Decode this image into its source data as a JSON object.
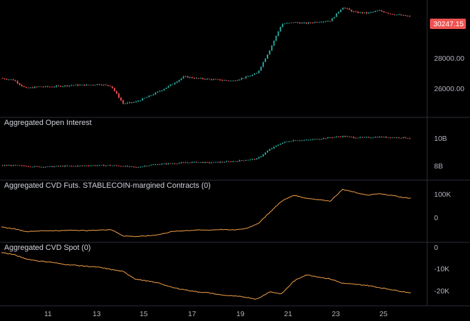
{
  "colors": {
    "background": "#000000",
    "separator": "#2a2e39",
    "axis_text": "#b2b5be",
    "up_candle": "#26a69a",
    "down_candle": "#ef5350",
    "cvd_line": "#f5a046",
    "price_tag": "#ef5350"
  },
  "price_pane": {
    "title": "",
    "last_price_label": "30247.15",
    "y_ticks": [
      "28000.00",
      "26000.00"
    ]
  },
  "oi_pane": {
    "title": "Aggregated Open Interest",
    "y_ticks": [
      "10B",
      "8B"
    ]
  },
  "cvd_futs_pane": {
    "title": "Aggregated CVD Futs. STABLECOIN-margined Contracts (0)",
    "y_ticks": [
      "100K",
      "0"
    ]
  },
  "cvd_spot_pane": {
    "title": "Aggregated CVD Spot (0)",
    "y_ticks": [
      "0",
      "-10K",
      "-20K"
    ]
  },
  "time_axis": {
    "labels": [
      "11",
      "13",
      "15",
      "17",
      "19",
      "21",
      "23",
      "25"
    ]
  },
  "chart_data": [
    {
      "type": "line",
      "title": "",
      "note_type": "candlestick",
      "x": [
        9.5,
        10.0,
        10.5,
        11.0,
        11.5,
        12.0,
        12.5,
        13.0,
        13.5,
        14.0,
        14.5,
        15.0,
        15.5,
        16.0,
        16.5,
        17.0,
        17.5,
        18.0,
        18.5,
        19.0,
        19.5,
        20.0,
        20.5,
        21.0,
        21.5,
        22.0,
        22.5,
        23.0,
        23.5,
        24.0,
        24.5,
        25.0,
        25.5,
        26.0,
        26.3
      ],
      "values": [
        26600,
        26500,
        26000,
        26100,
        26100,
        26150,
        26200,
        26200,
        26250,
        26150,
        25100,
        25200,
        25500,
        25850,
        26250,
        26700,
        26600,
        26550,
        26500,
        26450,
        26650,
        26900,
        28250,
        29800,
        29900,
        29850,
        29950,
        30000,
        30800,
        30500,
        30450,
        30600,
        30400,
        30300,
        30247
      ],
      "ylim": [
        24700,
        30900
      ],
      "y_ticks": [
        28000,
        26000
      ],
      "xlim": [
        9.5,
        26.8
      ]
    },
    {
      "type": "line",
      "title": "Aggregated Open Interest",
      "x": [
        9.5,
        10.0,
        10.5,
        11.0,
        11.5,
        12.0,
        12.5,
        13.0,
        13.5,
        14.0,
        14.5,
        15.0,
        15.5,
        16.0,
        16.5,
        17.0,
        17.5,
        18.0,
        18.5,
        19.0,
        19.5,
        20.0,
        20.5,
        21.0,
        21.5,
        22.0,
        22.5,
        23.0,
        23.5,
        24.0,
        24.5,
        25.0,
        25.5,
        26.0,
        26.3
      ],
      "values": [
        8.3,
        8.3,
        8.25,
        8.2,
        8.2,
        8.25,
        8.25,
        8.3,
        8.3,
        8.3,
        8.25,
        8.15,
        8.3,
        8.4,
        8.45,
        8.5,
        8.55,
        8.5,
        8.55,
        8.6,
        8.7,
        8.8,
        9.5,
        10.0,
        10.2,
        10.2,
        10.3,
        10.4,
        10.5,
        10.4,
        10.4,
        10.45,
        10.4,
        10.4,
        10.35
      ],
      "ylim": [
        7.5,
        11.3
      ],
      "y_ticks": [
        10,
        8
      ],
      "xlim": [
        9.5,
        26.8
      ]
    },
    {
      "type": "line",
      "title": "Aggregated CVD Futs. STABLECOIN-margined Contracts (0)",
      "x": [
        9.5,
        10.0,
        10.5,
        11.0,
        11.5,
        12.0,
        12.5,
        13.0,
        13.5,
        14.0,
        14.5,
        15.0,
        15.5,
        16.0,
        16.5,
        17.0,
        17.5,
        18.0,
        18.5,
        19.0,
        19.5,
        20.0,
        20.5,
        21.0,
        21.5,
        22.0,
        22.5,
        23.0,
        23.5,
        24.0,
        24.5,
        25.0,
        25.5,
        26.0,
        26.3
      ],
      "values": [
        0,
        -5000,
        -15000,
        -13000,
        -12000,
        -12000,
        -10000,
        -12000,
        -10000,
        -8000,
        -30000,
        -32000,
        -30000,
        -25000,
        -15000,
        -12000,
        -10000,
        -10000,
        -8000,
        -10000,
        -5000,
        10000,
        50000,
        90000,
        110000,
        100000,
        95000,
        90000,
        130000,
        120000,
        110000,
        115000,
        110000,
        102000,
        100000
      ],
      "ylim": [
        -45000,
        150000
      ],
      "y_ticks": [
        100000,
        0
      ],
      "xlim": [
        9.5,
        26.8
      ]
    },
    {
      "type": "line",
      "title": "Aggregated CVD Spot (0)",
      "x": [
        9.5,
        10.0,
        10.5,
        11.0,
        11.5,
        12.0,
        12.5,
        13.0,
        13.5,
        14.0,
        14.5,
        15.0,
        15.5,
        16.0,
        16.5,
        17.0,
        17.5,
        18.0,
        18.5,
        19.0,
        19.5,
        20.0,
        20.5,
        21.0,
        21.5,
        22.0,
        22.5,
        23.0,
        23.5,
        24.0,
        24.5,
        25.0,
        25.5,
        26.0,
        26.3
      ],
      "values": [
        -1500,
        -2500,
        -4500,
        -5500,
        -6000,
        -7000,
        -7500,
        -8000,
        -8500,
        -9500,
        -10500,
        -14000,
        -15000,
        -16000,
        -18000,
        -19000,
        -20000,
        -20500,
        -21500,
        -22000,
        -22500,
        -23500,
        -20000,
        -21000,
        -15000,
        -12000,
        -13000,
        -14000,
        -16000,
        -16500,
        -17000,
        -18000,
        -19000,
        -20000,
        -20500
      ],
      "ylim": [
        -25000,
        1000
      ],
      "y_ticks": [
        0,
        -10000,
        -20000
      ],
      "xlim": [
        9.5,
        26.8
      ]
    }
  ]
}
